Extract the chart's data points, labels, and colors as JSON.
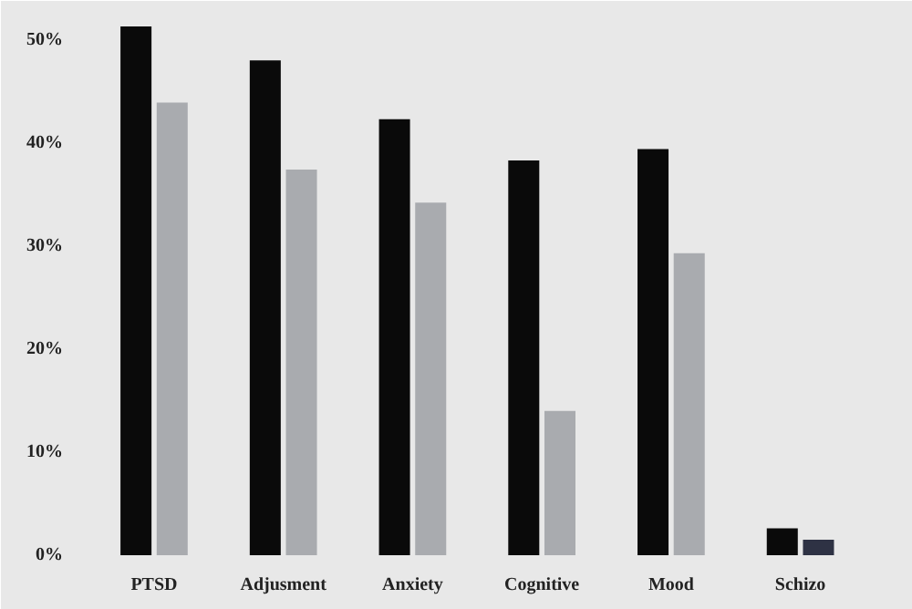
{
  "chart_data": {
    "type": "bar",
    "categories": [
      "PTSD",
      "Adjusment",
      "Anxiety",
      "Cognitive",
      "Mood",
      "Schizo"
    ],
    "series": [
      {
        "color": "#0a0a0a",
        "values": [
          51.3,
          48.0,
          42.3,
          38.3,
          39.4,
          2.6
        ]
      },
      {
        "colors": [
          "#a9abaf",
          "#a9abaf",
          "#a9abaf",
          "#a9abaf",
          "#a9abaf",
          "#2e3244"
        ],
        "values": [
          43.9,
          37.4,
          34.2,
          14.0,
          29.3,
          1.5
        ]
      }
    ],
    "ylim": [
      0,
      52
    ],
    "yticks": [
      {
        "value": 0,
        "label": "0%"
      },
      {
        "value": 10,
        "label": "10%"
      },
      {
        "value": 20,
        "label": "20%"
      },
      {
        "value": 30,
        "label": "30%"
      },
      {
        "value": 40,
        "label": "40%"
      },
      {
        "value": 50,
        "label": "50%"
      }
    ]
  }
}
